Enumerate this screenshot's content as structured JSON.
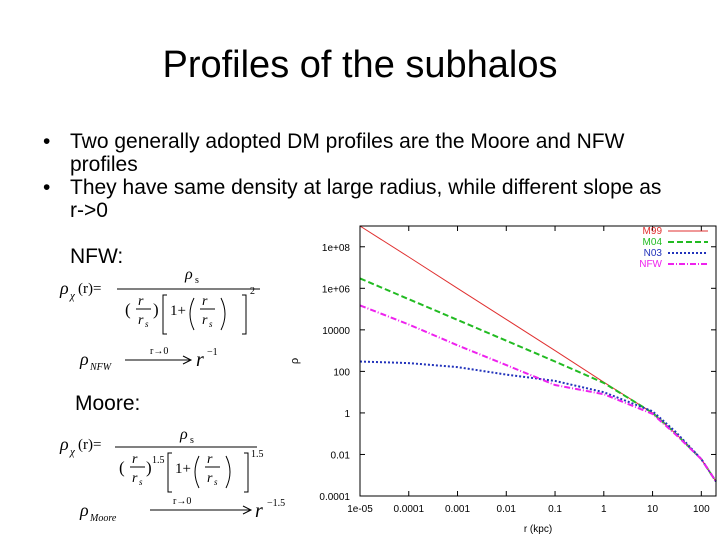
{
  "slide": {
    "title": "Profiles of the subhalos",
    "bullets": [
      "Two generally adopted DM profiles are the Moore and NFW profiles",
      "They have same density at large radius, while different slope as r->0"
    ],
    "nfw_label": "NFW:",
    "moore_label": "Moore:"
  },
  "formulas": {
    "rho_chi": "ρ",
    "chi_sub": "χ",
    "of_r": "(r)=",
    "rho_s": "ρ",
    "s_sub": "s",
    "r": "r",
    "rs_r": "r",
    "rs_s": "s",
    "one_plus": "1+",
    "open_paren": "(",
    "close_paren": ")",
    "exp_2": "2",
    "exp_15": "1.5",
    "rho_nfw": "ρ",
    "nfw_sub": "NFW",
    "arrow_label": "r→0",
    "r_pow": "r",
    "exp_m1": "−1",
    "rho_moore": "ρ",
    "moore_sub": "Moore",
    "exp_m15": "−1.5"
  },
  "chart_data": {
    "type": "line",
    "xlabel": "r (kpc)",
    "ylabel": "ρ",
    "x_scale": "log",
    "y_scale": "log",
    "xlim": [
      1e-05,
      200
    ],
    "ylim": [
      0.0001,
      1000000000
    ],
    "x_ticks": [
      "1e-05",
      "0.0001",
      "0.001",
      "0.01",
      "0.1",
      "1",
      "10",
      "100"
    ],
    "y_ticks": [
      "0.0001",
      "0.01",
      "1",
      "100",
      "10000",
      "1e+06",
      "1e+08"
    ],
    "legend_position": "top-right",
    "series": [
      {
        "name": "M99",
        "color": "#e03030",
        "dash": "solid",
        "x": [
          1e-05,
          0.0001,
          0.001,
          0.01,
          0.1,
          1,
          10,
          30,
          100,
          200
        ],
        "y": [
          1000000000.0,
          32000000.0,
          1000000.0,
          32000.0,
          1000,
          30,
          1,
          0.1,
          0.006,
          0.0005
        ]
      },
      {
        "name": "M04",
        "color": "#22bb22",
        "dash": "dashed",
        "x": [
          1e-05,
          0.0001,
          0.001,
          0.01,
          0.1,
          1,
          10,
          30,
          100,
          200
        ],
        "y": [
          3000000.0,
          300000.0,
          30000.0,
          3000,
          300,
          28,
          1,
          0.1,
          0.006,
          0.0005
        ]
      },
      {
        "name": "N03",
        "color": "#2233bb",
        "dash": "dotted",
        "x": [
          1e-05,
          0.0001,
          0.001,
          0.01,
          0.1,
          1,
          10,
          30,
          100,
          200
        ],
        "y": [
          300,
          250,
          160,
          70,
          35,
          10,
          1.2,
          0.12,
          0.006,
          0.0005
        ]
      },
      {
        "name": "NFW",
        "color": "#ee22ee",
        "dash": "dashdot",
        "x": [
          1e-05,
          0.0001,
          0.001,
          0.01,
          0.1,
          1,
          10,
          30,
          100,
          200
        ],
        "y": [
          150000,
          18000,
          1800,
          200,
          22,
          8,
          0.9,
          0.09,
          0.006,
          0.0005
        ]
      }
    ]
  }
}
